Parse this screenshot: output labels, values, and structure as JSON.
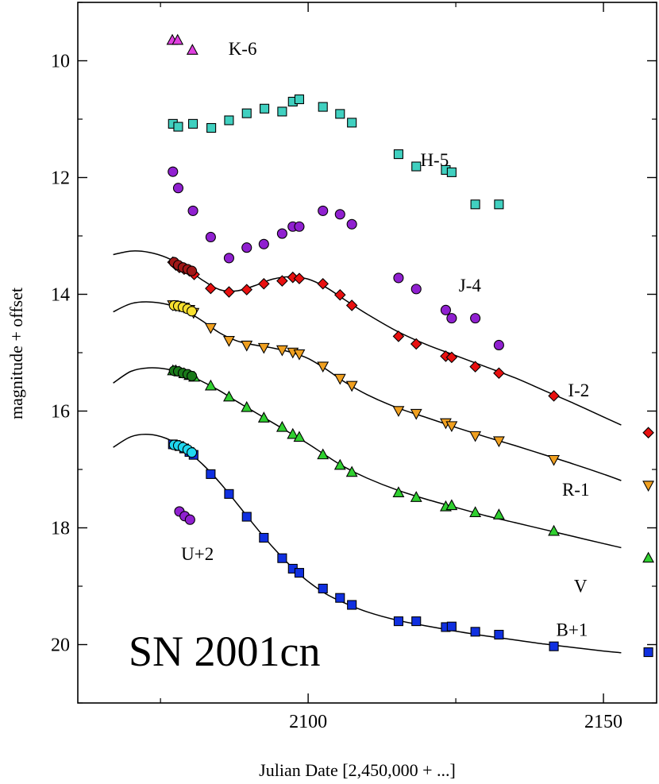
{
  "chart_data": {
    "type": "scatter",
    "title": "SN 2001cn",
    "xlabel": "Julian Date [2,450,000 + ...]",
    "ylabel": "magnitude + offset",
    "xlim": [
      2061,
      2159
    ],
    "ylim": [
      21.0,
      9.0
    ],
    "y_inverted": true,
    "grid": false,
    "xticks": [
      2100,
      2150
    ],
    "xtick_labels": [
      "2100",
      "2150"
    ],
    "yticks": [
      10,
      12,
      14,
      16,
      18,
      20
    ],
    "ytick_labels": [
      "10",
      "12",
      "14",
      "16",
      "18",
      "20"
    ],
    "series": [
      {
        "name": "K-6",
        "label": "K-6",
        "marker": "triangle-up",
        "color": "#e040e0",
        "label_pos": [
          2086.5,
          9.9
        ],
        "points": [
          [
            2077.0,
            9.65
          ],
          [
            2077.9,
            9.65
          ],
          [
            2080.4,
            9.82
          ]
        ]
      },
      {
        "name": "H-5",
        "label": "H-5",
        "marker": "square",
        "color": "#40d0c0",
        "label_pos": [
          2119.0,
          11.8
        ],
        "points": [
          [
            2077.1,
            11.08
          ],
          [
            2078.0,
            11.13
          ],
          [
            2080.5,
            11.08
          ],
          [
            2083.6,
            11.15
          ],
          [
            2086.6,
            11.02
          ],
          [
            2089.6,
            10.9
          ],
          [
            2092.6,
            10.82
          ],
          [
            2095.6,
            10.87
          ],
          [
            2097.4,
            10.7
          ],
          [
            2098.5,
            10.66
          ],
          [
            2102.5,
            10.79
          ],
          [
            2105.4,
            10.91
          ],
          [
            2107.4,
            11.06
          ],
          [
            2115.3,
            11.6
          ],
          [
            2118.3,
            11.81
          ],
          [
            2123.3,
            11.87
          ],
          [
            2124.3,
            11.91
          ],
          [
            2128.3,
            12.46
          ],
          [
            2132.3,
            12.46
          ]
        ]
      },
      {
        "name": "J-4",
        "label": "J-4",
        "marker": "circle",
        "color": "#9020d0",
        "label_pos": [
          2125.5,
          13.95
        ],
        "points": [
          [
            2077.1,
            11.9
          ],
          [
            2078.0,
            12.18
          ],
          [
            2080.5,
            12.57
          ],
          [
            2083.5,
            13.02
          ],
          [
            2086.6,
            13.38
          ],
          [
            2089.6,
            13.2
          ],
          [
            2092.5,
            13.14
          ],
          [
            2095.6,
            12.96
          ],
          [
            2097.4,
            12.84
          ],
          [
            2098.5,
            12.84
          ],
          [
            2102.5,
            12.57
          ],
          [
            2105.4,
            12.63
          ],
          [
            2107.4,
            12.8
          ],
          [
            2115.3,
            13.72
          ],
          [
            2118.3,
            13.91
          ],
          [
            2123.3,
            14.27
          ],
          [
            2124.3,
            14.41
          ],
          [
            2128.3,
            14.41
          ],
          [
            2132.3,
            14.87
          ]
        ]
      },
      {
        "name": "I-2",
        "label": "I-2",
        "marker": "diamond",
        "color": "#e81010",
        "label_pos": [
          2144.0,
          15.75
        ],
        "points": [
          [
            2077.1,
            13.45
          ],
          [
            2077.6,
            13.5
          ],
          [
            2078.2,
            13.54
          ],
          [
            2079.0,
            13.57
          ],
          [
            2079.9,
            13.6
          ],
          [
            2080.7,
            13.66
          ],
          [
            2083.5,
            13.9
          ],
          [
            2086.6,
            13.96
          ],
          [
            2089.6,
            13.92
          ],
          [
            2092.5,
            13.82
          ],
          [
            2095.6,
            13.77
          ],
          [
            2097.4,
            13.71
          ],
          [
            2098.5,
            13.73
          ],
          [
            2102.5,
            13.82
          ],
          [
            2105.4,
            14.01
          ],
          [
            2107.4,
            14.19
          ],
          [
            2115.3,
            14.72
          ],
          [
            2118.3,
            14.85
          ],
          [
            2123.3,
            15.06
          ],
          [
            2124.3,
            15.08
          ],
          [
            2128.3,
            15.24
          ],
          [
            2132.3,
            15.35
          ],
          [
            2141.6,
            15.74
          ],
          [
            2157.6,
            16.37
          ]
        ],
        "curve": [
          [
            2067.0,
            13.32
          ],
          [
            2070.0,
            13.26
          ],
          [
            2073.0,
            13.28
          ],
          [
            2076.0,
            13.37
          ],
          [
            2079.0,
            13.53
          ],
          [
            2082.0,
            13.75
          ],
          [
            2085.0,
            13.92
          ],
          [
            2088.0,
            13.94
          ],
          [
            2091.0,
            13.85
          ],
          [
            2094.0,
            13.74
          ],
          [
            2097.0,
            13.7
          ],
          [
            2100.0,
            13.74
          ],
          [
            2103.0,
            13.88
          ],
          [
            2106.0,
            14.08
          ],
          [
            2110.0,
            14.34
          ],
          [
            2115.0,
            14.63
          ],
          [
            2120.0,
            14.86
          ],
          [
            2125.0,
            15.05
          ],
          [
            2130.0,
            15.24
          ],
          [
            2135.0,
            15.43
          ],
          [
            2140.0,
            15.65
          ],
          [
            2145.0,
            15.87
          ],
          [
            2150.0,
            16.1
          ],
          [
            2153.0,
            16.24
          ]
        ]
      },
      {
        "name": "R-1",
        "label": "R-1",
        "marker": "triangle-down",
        "color": "#f0a020",
        "label_pos": [
          2143.0,
          17.45
        ],
        "points": [
          [
            2077.1,
            14.18
          ],
          [
            2077.6,
            14.19
          ],
          [
            2078.2,
            14.2
          ],
          [
            2079.0,
            14.22
          ],
          [
            2079.9,
            14.26
          ],
          [
            2080.6,
            14.31
          ],
          [
            2083.5,
            14.57
          ],
          [
            2086.6,
            14.79
          ],
          [
            2089.6,
            14.87
          ],
          [
            2092.5,
            14.91
          ],
          [
            2095.6,
            14.95
          ],
          [
            2097.4,
            14.99
          ],
          [
            2098.5,
            15.02
          ],
          [
            2102.5,
            15.23
          ],
          [
            2105.4,
            15.44
          ],
          [
            2107.4,
            15.56
          ],
          [
            2115.3,
            15.99
          ],
          [
            2118.3,
            16.04
          ],
          [
            2123.3,
            16.2
          ],
          [
            2124.3,
            16.25
          ],
          [
            2128.3,
            16.42
          ],
          [
            2132.3,
            16.51
          ],
          [
            2141.6,
            16.83
          ],
          [
            2157.6,
            17.27
          ]
        ],
        "curve": [
          [
            2067.0,
            14.3
          ],
          [
            2070.0,
            14.16
          ],
          [
            2073.0,
            14.13
          ],
          [
            2076.0,
            14.17
          ],
          [
            2079.0,
            14.27
          ],
          [
            2082.0,
            14.45
          ],
          [
            2085.0,
            14.66
          ],
          [
            2088.0,
            14.8
          ],
          [
            2091.0,
            14.87
          ],
          [
            2094.0,
            14.92
          ],
          [
            2097.0,
            14.99
          ],
          [
            2100.0,
            15.1
          ],
          [
            2103.0,
            15.28
          ],
          [
            2106.0,
            15.49
          ],
          [
            2110.0,
            15.72
          ],
          [
            2115.0,
            15.94
          ],
          [
            2120.0,
            16.11
          ],
          [
            2125.0,
            16.28
          ],
          [
            2130.0,
            16.44
          ],
          [
            2135.0,
            16.59
          ],
          [
            2140.0,
            16.75
          ],
          [
            2145.0,
            16.91
          ],
          [
            2150.0,
            17.08
          ],
          [
            2153.0,
            17.19
          ]
        ]
      },
      {
        "name": "V",
        "label": "V",
        "marker": "triangle-up",
        "color": "#30d030",
        "label_pos": [
          2145.0,
          19.1
        ],
        "points": [
          [
            2077.1,
            15.31
          ],
          [
            2077.6,
            15.31
          ],
          [
            2078.2,
            15.33
          ],
          [
            2079.0,
            15.36
          ],
          [
            2079.9,
            15.39
          ],
          [
            2080.7,
            15.42
          ],
          [
            2083.5,
            15.57
          ],
          [
            2086.6,
            15.76
          ],
          [
            2089.6,
            15.94
          ],
          [
            2092.5,
            16.12
          ],
          [
            2095.6,
            16.28
          ],
          [
            2097.4,
            16.4
          ],
          [
            2098.5,
            16.45
          ],
          [
            2102.5,
            16.75
          ],
          [
            2105.4,
            16.93
          ],
          [
            2107.4,
            17.05
          ],
          [
            2115.3,
            17.4
          ],
          [
            2118.3,
            17.48
          ],
          [
            2123.3,
            17.64
          ],
          [
            2124.3,
            17.62
          ],
          [
            2128.3,
            17.74
          ],
          [
            2132.3,
            17.78
          ],
          [
            2141.6,
            18.06
          ],
          [
            2157.6,
            18.52
          ]
        ],
        "curve": [
          [
            2067.0,
            15.52
          ],
          [
            2070.0,
            15.32
          ],
          [
            2073.0,
            15.26
          ],
          [
            2076.0,
            15.28
          ],
          [
            2079.0,
            15.36
          ],
          [
            2082.0,
            15.49
          ],
          [
            2085.0,
            15.65
          ],
          [
            2088.0,
            15.84
          ],
          [
            2091.0,
            16.02
          ],
          [
            2094.0,
            16.2
          ],
          [
            2097.0,
            16.38
          ],
          [
            2100.0,
            16.56
          ],
          [
            2103.0,
            16.76
          ],
          [
            2106.0,
            16.95
          ],
          [
            2110.0,
            17.15
          ],
          [
            2115.0,
            17.35
          ],
          [
            2120.0,
            17.51
          ],
          [
            2125.0,
            17.65
          ],
          [
            2130.0,
            17.79
          ],
          [
            2135.0,
            17.91
          ],
          [
            2140.0,
            18.03
          ],
          [
            2145.0,
            18.15
          ],
          [
            2150.0,
            18.27
          ],
          [
            2153.0,
            18.34
          ]
        ]
      },
      {
        "name": "B+1",
        "label": "B+1",
        "marker": "square",
        "color": "#1030e0",
        "label_pos": [
          2142.0,
          19.85
        ],
        "points": [
          [
            2077.1,
            16.57
          ],
          [
            2077.6,
            16.58
          ],
          [
            2078.2,
            16.6
          ],
          [
            2079.0,
            16.64
          ],
          [
            2079.9,
            16.7
          ],
          [
            2080.6,
            16.75
          ],
          [
            2083.5,
            17.08
          ],
          [
            2086.6,
            17.42
          ],
          [
            2089.6,
            17.81
          ],
          [
            2092.5,
            18.17
          ],
          [
            2095.6,
            18.52
          ],
          [
            2097.4,
            18.7
          ],
          [
            2098.5,
            18.77
          ],
          [
            2102.5,
            19.04
          ],
          [
            2105.4,
            19.2
          ],
          [
            2107.4,
            19.32
          ],
          [
            2115.3,
            19.6
          ],
          [
            2118.3,
            19.6
          ],
          [
            2123.3,
            19.7
          ],
          [
            2124.3,
            19.69
          ],
          [
            2128.3,
            19.78
          ],
          [
            2132.3,
            19.83
          ],
          [
            2141.6,
            20.03
          ],
          [
            2157.6,
            20.13
          ]
        ],
        "curve": [
          [
            2067.0,
            16.62
          ],
          [
            2070.0,
            16.44
          ],
          [
            2073.0,
            16.4
          ],
          [
            2076.0,
            16.47
          ],
          [
            2079.0,
            16.65
          ],
          [
            2082.0,
            16.9
          ],
          [
            2085.0,
            17.22
          ],
          [
            2088.0,
            17.59
          ],
          [
            2091.0,
            17.97
          ],
          [
            2094.0,
            18.33
          ],
          [
            2097.0,
            18.65
          ],
          [
            2100.0,
            18.92
          ],
          [
            2103.0,
            19.13
          ],
          [
            2106.0,
            19.28
          ],
          [
            2110.0,
            19.44
          ],
          [
            2115.0,
            19.58
          ],
          [
            2120.0,
            19.68
          ],
          [
            2125.0,
            19.77
          ],
          [
            2130.0,
            19.85
          ],
          [
            2135.0,
            19.92
          ],
          [
            2140.0,
            19.99
          ],
          [
            2145.0,
            20.05
          ],
          [
            2150.0,
            20.11
          ],
          [
            2153.0,
            20.14
          ]
        ]
      },
      {
        "name": "U+2",
        "label": "U+2",
        "marker": "circle",
        "color": "#9020d0",
        "label_pos": [
          2078.5,
          18.55
        ],
        "points": [
          [
            2078.2,
            17.72
          ],
          [
            2079.1,
            17.8
          ],
          [
            2080.0,
            17.86
          ]
        ]
      }
    ],
    "early_points": [
      {
        "series": "I-2",
        "color": "#a01818",
        "marker": "circle",
        "points": [
          [
            2077.3,
            13.45
          ],
          [
            2078.0,
            13.5
          ],
          [
            2078.8,
            13.54
          ],
          [
            2079.6,
            13.57
          ],
          [
            2080.3,
            13.6
          ]
        ]
      },
      {
        "series": "R-1",
        "color": "#f8e030",
        "marker": "circle",
        "points": [
          [
            2077.3,
            14.19
          ],
          [
            2078.0,
            14.2
          ],
          [
            2078.8,
            14.22
          ],
          [
            2079.6,
            14.25
          ],
          [
            2080.3,
            14.29
          ]
        ]
      },
      {
        "series": "V",
        "color": "#1a7a1a",
        "marker": "circle",
        "points": [
          [
            2077.3,
            15.31
          ],
          [
            2078.0,
            15.32
          ],
          [
            2078.8,
            15.35
          ],
          [
            2079.6,
            15.37
          ],
          [
            2080.3,
            15.4
          ]
        ]
      },
      {
        "series": "B+1",
        "color": "#20d8f0",
        "marker": "circle",
        "points": [
          [
            2077.3,
            16.58
          ],
          [
            2078.0,
            16.59
          ],
          [
            2078.8,
            16.62
          ],
          [
            2079.6,
            16.66
          ],
          [
            2080.3,
            16.71
          ]
        ]
      }
    ]
  }
}
